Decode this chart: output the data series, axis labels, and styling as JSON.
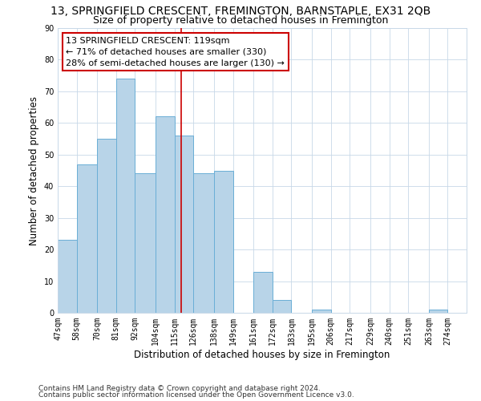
{
  "title": "13, SPRINGFIELD CRESCENT, FREMINGTON, BARNSTAPLE, EX31 2QB",
  "subtitle": "Size of property relative to detached houses in Fremington",
  "xlabel": "Distribution of detached houses by size in Fremington",
  "ylabel": "Number of detached properties",
  "bar_edges": [
    47,
    58,
    70,
    81,
    92,
    104,
    115,
    126,
    138,
    149,
    161,
    172,
    183,
    195,
    206,
    217,
    229,
    240,
    251,
    263,
    274
  ],
  "bar_heights": [
    23,
    47,
    55,
    74,
    44,
    62,
    56,
    44,
    45,
    0,
    13,
    4,
    0,
    1,
    0,
    0,
    0,
    0,
    0,
    1
  ],
  "bar_color": "#b8d4e8",
  "bar_edge_color": "#6aaed6",
  "vline_x": 119,
  "vline_color": "#cc0000",
  "ylim": [
    0,
    90
  ],
  "yticks": [
    0,
    10,
    20,
    30,
    40,
    50,
    60,
    70,
    80,
    90
  ],
  "xtick_labels": [
    "47sqm",
    "58sqm",
    "70sqm",
    "81sqm",
    "92sqm",
    "104sqm",
    "115sqm",
    "126sqm",
    "138sqm",
    "149sqm",
    "161sqm",
    "172sqm",
    "183sqm",
    "195sqm",
    "206sqm",
    "217sqm",
    "229sqm",
    "240sqm",
    "251sqm",
    "263sqm",
    "274sqm"
  ],
  "annotation_title": "13 SPRINGFIELD CRESCENT: 119sqm",
  "annotation_line1": "← 71% of detached houses are smaller (330)",
  "annotation_line2": "28% of semi-detached houses are larger (130) →",
  "annotation_box_color": "#ffffff",
  "annotation_box_edge": "#cc0000",
  "footer_line1": "Contains HM Land Registry data © Crown copyright and database right 2024.",
  "footer_line2": "Contains public sector information licensed under the Open Government Licence v3.0.",
  "background_color": "#ffffff",
  "grid_color": "#c8d8e8",
  "title_fontsize": 10,
  "subtitle_fontsize": 9,
  "axis_label_fontsize": 8.5,
  "tick_fontsize": 7,
  "annotation_fontsize": 8,
  "footer_fontsize": 6.5
}
